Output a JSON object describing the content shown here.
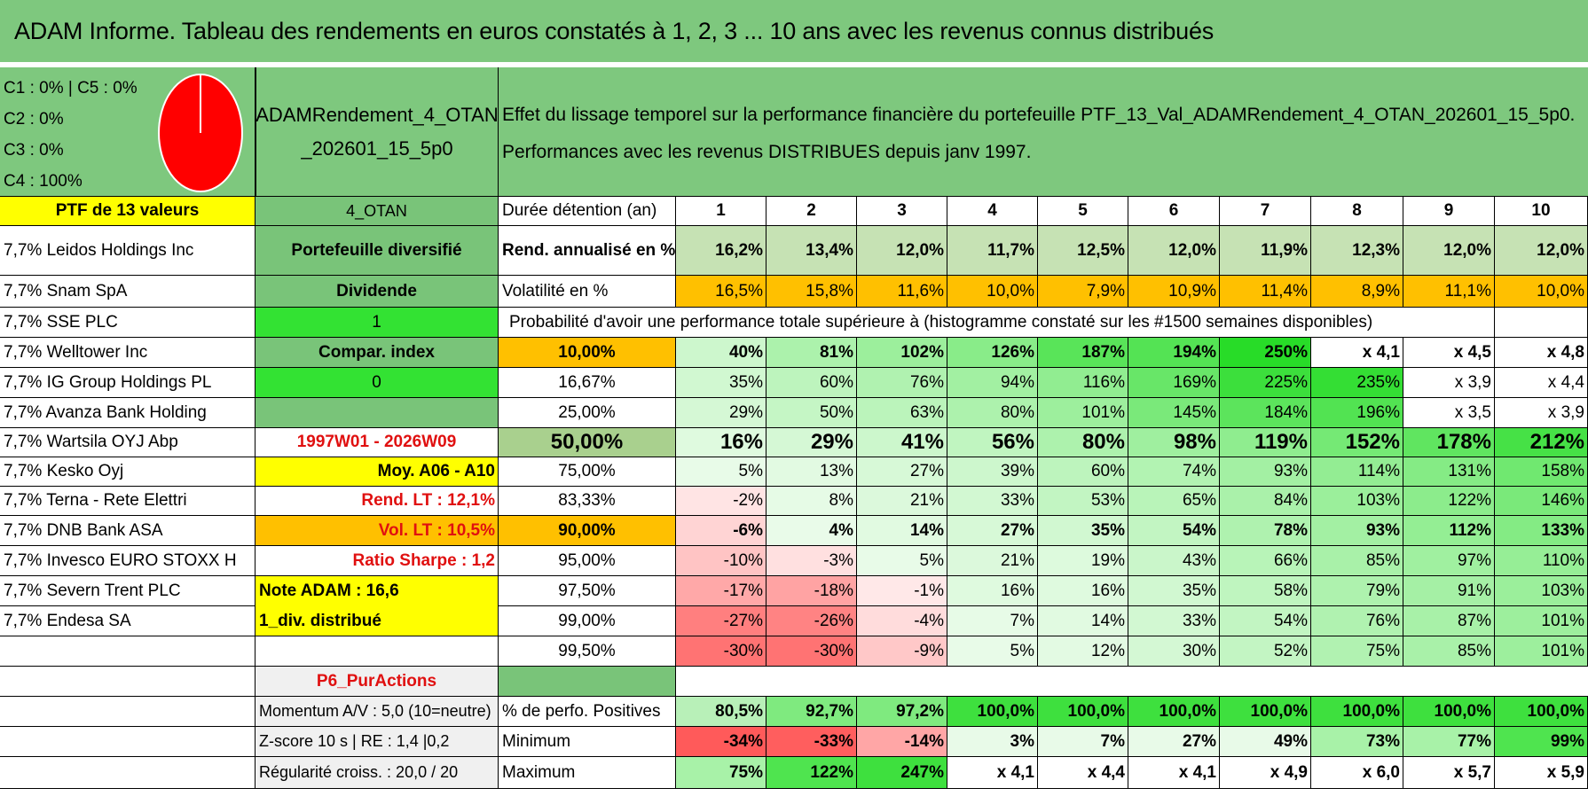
{
  "title": "ADAM Informe. Tableau des rendements en euros constatés à 1, 2, 3 ... 10 ans avec les revenus connus distribués",
  "colors": {
    "header_green": "#7ec87e",
    "yellow": "#ffff00",
    "orange": "#ffc000",
    "bright_green": "#33e233",
    "mid_green": "#79c479",
    "light_grey": "#f0f0f0",
    "pie_red": "#ff0000",
    "text_red": "#e01010"
  },
  "legend": {
    "lines": [
      "C1 : 0% | C5 : 0%",
      "C2 : 0%",
      "C3 : 0%",
      "C4 : 100%"
    ],
    "pie": [
      {
        "name": "C1",
        "value": 0
      },
      {
        "name": "C2",
        "value": 0
      },
      {
        "name": "C3",
        "value": 0
      },
      {
        "name": "C4",
        "value": 100
      },
      {
        "name": "C5",
        "value": 0
      }
    ]
  },
  "portfolio": {
    "name_line1": "ADAMRendement_4_OTAN",
    "name_line2": "_202601_15_5p0",
    "ptf_label": "PTF de 13 valeurs",
    "code": "4_OTAN"
  },
  "description": {
    "line1": "Effet du lissage temporel sur la performance financière du portefeuille PTF_13_Val_ADAMRendement_4_OTAN_202601_15_5p0.",
    "line2": "Performances avec les revenus DISTRIBUES depuis janv 1997."
  },
  "holdings": [
    "7,7% Leidos Holdings Inc",
    "7,7% Snam SpA",
    "7,7% SSE PLC",
    "7,7% Welltower Inc",
    "7,7% IG Group Holdings PL",
    "7,7% Avanza Bank Holding",
    "7,7% Wartsila OYJ Abp",
    "7,7% Kesko Oyj",
    "7,7% Terna - Rete Elettri",
    "7,7% DNB Bank ASA",
    "7,7% Invesco EURO STOXX H",
    "7,7% Severn Trent PLC",
    "7,7% Endesa SA"
  ],
  "info": {
    "diversified": "Portefeuille diversifié",
    "dividend_label": "Dividende",
    "dividend_value": "1",
    "compar_label": "Compar. index",
    "compar_value": "0",
    "period": "1997W01 - 2026W09",
    "moy": "Moy. A06 - A10",
    "rend_lt": "Rend. LT : 12,1%",
    "vol_lt": "Vol. LT : 10,5%",
    "sharpe": "Ratio Sharpe : 1,2",
    "note": "Note ADAM : 16,6",
    "div_distrib": "1_div. distribué",
    "purchase": "P6_PurActions",
    "momentum": "Momentum A/V : 5,0 (10=neutre)",
    "zscore": "Z-score 10 s | RE : 1,4 |0,2",
    "regularite": "Régularité croiss. : 20,0 / 20"
  },
  "table": {
    "duration_label": "Durée détention (an)",
    "years": [
      "1",
      "2",
      "3",
      "4",
      "5",
      "6",
      "7",
      "8",
      "9",
      "10"
    ],
    "rend_label": "Rend. annualisé en %",
    "rend": [
      "16,2%",
      "13,4%",
      "12,0%",
      "11,7%",
      "12,5%",
      "12,0%",
      "11,9%",
      "12,3%",
      "12,0%",
      "12,0%"
    ],
    "vol_label": "Volatilité en %",
    "vol": [
      "16,5%",
      "15,8%",
      "11,6%",
      "10,0%",
      "7,9%",
      "10,9%",
      "11,4%",
      "8,9%",
      "11,1%",
      "10,0%"
    ],
    "prob_title": "Probabilité d'avoir une performance totale supérieure à (histogramme constaté sur les #1500 semaines disponibles)",
    "prob_rows": [
      {
        "p": "10,00%",
        "vals": [
          "40%",
          "81%",
          "102%",
          "126%",
          "187%",
          "194%",
          "250%",
          "x 4,1",
          "x 4,5",
          "x 4,8"
        ]
      },
      {
        "p": "16,67%",
        "vals": [
          "35%",
          "60%",
          "76%",
          "94%",
          "116%",
          "169%",
          "225%",
          "235%",
          "x 3,9",
          "x 4,4"
        ]
      },
      {
        "p": "25,00%",
        "vals": [
          "29%",
          "50%",
          "63%",
          "80%",
          "101%",
          "145%",
          "184%",
          "196%",
          "x 3,5",
          "x 3,9"
        ]
      },
      {
        "p": "50,00%",
        "vals": [
          "16%",
          "29%",
          "41%",
          "56%",
          "80%",
          "98%",
          "119%",
          "152%",
          "178%",
          "212%"
        ]
      },
      {
        "p": "75,00%",
        "vals": [
          "5%",
          "13%",
          "27%",
          "39%",
          "60%",
          "74%",
          "93%",
          "114%",
          "131%",
          "158%"
        ]
      },
      {
        "p": "83,33%",
        "vals": [
          "-2%",
          "8%",
          "21%",
          "33%",
          "53%",
          "65%",
          "84%",
          "103%",
          "122%",
          "146%"
        ]
      },
      {
        "p": "90,00%",
        "vals": [
          "-6%",
          "4%",
          "14%",
          "27%",
          "35%",
          "54%",
          "78%",
          "93%",
          "112%",
          "133%"
        ]
      },
      {
        "p": "95,00%",
        "vals": [
          "-10%",
          "-3%",
          "5%",
          "21%",
          "19%",
          "43%",
          "66%",
          "85%",
          "97%",
          "110%"
        ]
      },
      {
        "p": "97,50%",
        "vals": [
          "-17%",
          "-18%",
          "-1%",
          "16%",
          "16%",
          "35%",
          "58%",
          "79%",
          "91%",
          "103%"
        ]
      },
      {
        "p": "99,00%",
        "vals": [
          "-27%",
          "-26%",
          "-4%",
          "7%",
          "14%",
          "33%",
          "54%",
          "76%",
          "87%",
          "101%"
        ]
      },
      {
        "p": "99,50%",
        "vals": [
          "-30%",
          "-30%",
          "-9%",
          "5%",
          "12%",
          "30%",
          "52%",
          "75%",
          "85%",
          "101%"
        ]
      }
    ],
    "pos_label": "% de perfo. Positives",
    "pos": [
      "80,5%",
      "92,7%",
      "97,2%",
      "100,0%",
      "100,0%",
      "100,0%",
      "100,0%",
      "100,0%",
      "100,0%",
      "100,0%"
    ],
    "min_label": "Minimum",
    "min": [
      "-34%",
      "-33%",
      "-14%",
      "3%",
      "7%",
      "27%",
      "49%",
      "73%",
      "77%",
      "99%"
    ],
    "max_label": "Maximum",
    "max": [
      "75%",
      "122%",
      "247%",
      "x 4,1",
      "x 4,4",
      "x 4,1",
      "x 4,9",
      "x 6,0",
      "x 5,7",
      "x 5,9"
    ]
  }
}
